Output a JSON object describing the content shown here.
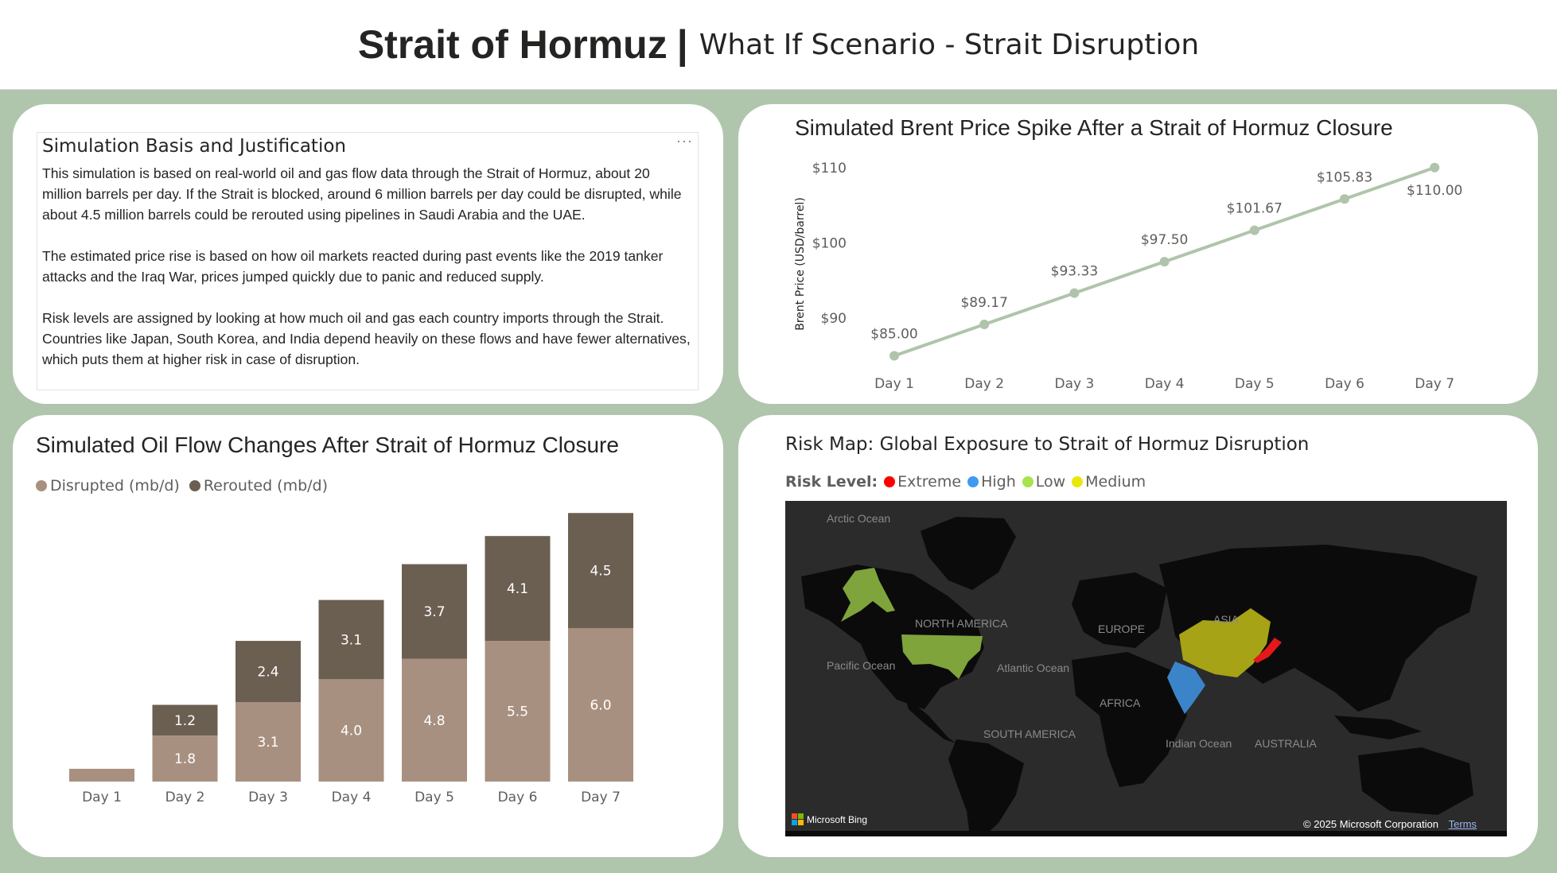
{
  "header": {
    "title": "Strait of Hormuz",
    "separator": "|",
    "subtitle": "What If Scenario - Strait Disruption"
  },
  "text_card": {
    "title": "Simulation Basis and Justification",
    "more": "···",
    "paragraphs": [
      "This simulation is based on real-world oil and gas flow data through the Strait of Hormuz, about 20 million barrels per day. If the Strait is blocked, around 6 million barrels per day could be disrupted, while about 4.5 million barrels could be rerouted using pipelines in Saudi Arabia and the UAE.",
      "The estimated price rise is based on how oil markets reacted during past events like the 2019 tanker attacks and the Iraq War, prices jumped quickly due to panic and reduced supply.",
      "Risk levels are assigned by looking at how much oil and gas each country imports through the Strait. Countries like Japan, South Korea, and India depend heavily on these flows and have fewer alternatives, which puts them at higher risk in case of disruption."
    ]
  },
  "colors": {
    "line": "#b0c4ab",
    "disrupted": "#a89080",
    "rerouted": "#6b5f52",
    "extreme": "#ff0000",
    "high": "#3f9bf2",
    "low": "#a7e34a",
    "medium": "#e8e80c",
    "us_fill": "#7fa43c",
    "china_fill": "#a7a316",
    "india_fill": "#3b84c9",
    "japan_fill": "#e3181a"
  },
  "chart_data": [
    {
      "type": "line",
      "title": "Simulated Brent Price Spike After a Strait of Hormuz Closure",
      "ylabel": "Brent Price (USD/barrel)",
      "categories": [
        "Day 1",
        "Day 2",
        "Day 3",
        "Day 4",
        "Day 5",
        "Day 6",
        "Day 7"
      ],
      "values": [
        85.0,
        89.17,
        93.33,
        97.5,
        101.67,
        105.83,
        110.0
      ],
      "data_labels": [
        "$85.00",
        "$89.17",
        "$93.33",
        "$97.50",
        "$101.67",
        "$105.83",
        "$110.00"
      ],
      "yticks": [
        90,
        100,
        110
      ],
      "ytick_labels": [
        "$90",
        "$100",
        "$110"
      ],
      "ylim": [
        84,
        110.4
      ],
      "grid": false
    },
    {
      "type": "bar",
      "stacked": true,
      "title": "Simulated Oil Flow Changes After Strait of Hormuz Closure",
      "categories": [
        "Day 1",
        "Day 2",
        "Day 3",
        "Day 4",
        "Day 5",
        "Day 6",
        "Day 7"
      ],
      "series": [
        {
          "name": "Disrupted (mb/d)",
          "values": [
            0.5,
            1.8,
            3.1,
            4.0,
            4.8,
            5.5,
            6.0
          ],
          "labels": [
            "",
            "1.8",
            "3.1",
            "4.0",
            "4.8",
            "5.5",
            "6.0"
          ]
        },
        {
          "name": "Rerouted (mb/d)",
          "values": [
            0,
            1.2,
            2.4,
            3.1,
            3.7,
            4.1,
            4.5
          ],
          "labels": [
            "",
            "1.2",
            "2.4",
            "3.1",
            "3.7",
            "4.1",
            "4.5"
          ]
        }
      ],
      "ylim": [
        0,
        10.6
      ],
      "legend_position": "top-left",
      "grid": false
    }
  ],
  "risk_map": {
    "title": "Risk Map: Global Exposure to Strait of Hormuz Disruption",
    "legend_label": "Risk Level:",
    "levels": [
      "Extreme",
      "High",
      "Low",
      "Medium"
    ],
    "map_labels": [
      "Arctic Ocean",
      "NORTH AMERICA",
      "EUROPE",
      "ASIA",
      "Pacific Ocean",
      "Atlantic Ocean",
      "AFRICA",
      "SOUTH AMERICA",
      "Indian Ocean",
      "AUSTRALIA"
    ],
    "brand": "Microsoft Bing",
    "copyright": "© 2025 Microsoft Corporation",
    "terms": "Terms"
  }
}
